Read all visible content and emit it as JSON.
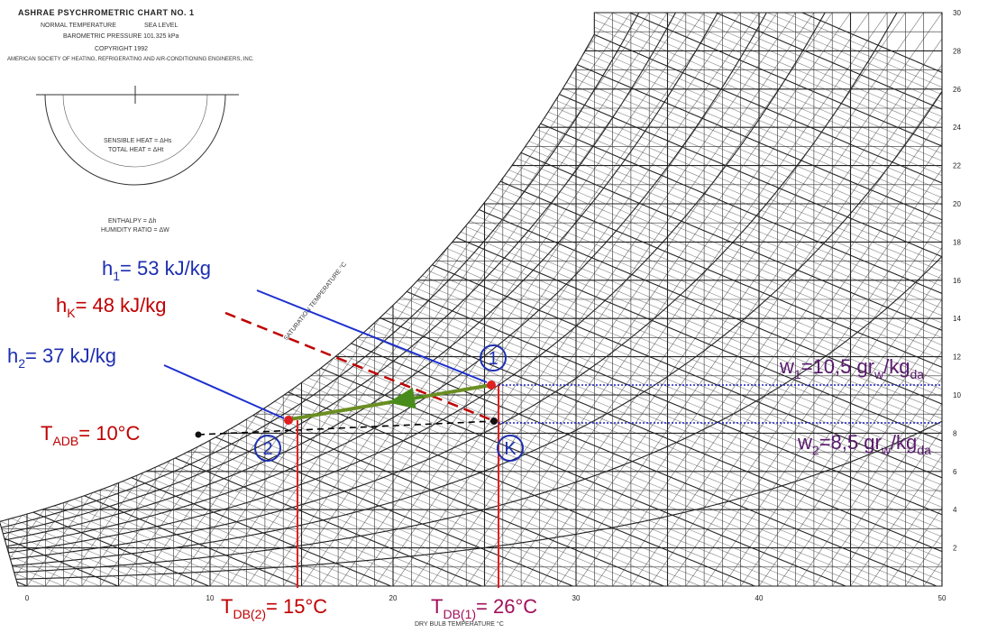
{
  "header": {
    "title": "ASHRAE PSYCHROMETRIC CHART NO. 1",
    "condition_left": "NORMAL TEMPERATURE",
    "condition_right": "SEA LEVEL",
    "pressure": "BAROMETRIC PRESSURE 101.325 kPa",
    "copyright": "COPYRIGHT 1992",
    "society": "AMERICAN SOCIETY OF HEATING, REFRIGERATING AND AIR-CONDITIONING ENGINEERS, INC."
  },
  "protractor": {
    "sensible": "SENSIBLE HEAT = ΔHs",
    "total": "TOTAL HEAT = ΔHt",
    "enthalpy": "ENTHALPY = Δh",
    "humidity": "HUMIDITY RATIO = ΔW"
  },
  "axes": {
    "x_label": "DRY BULB TEMPERATURE °C",
    "x_ticks": [
      "0",
      "10",
      "20",
      "30",
      "40",
      "50"
    ],
    "y_ticks": [
      "2",
      "4",
      "6",
      "8",
      "10",
      "12",
      "14",
      "16",
      "18",
      "20",
      "22",
      "24",
      "26",
      "28",
      "30"
    ],
    "saturation_label": "SATURATION TEMPERATURE °C"
  },
  "annotations": {
    "h1": [
      "h",
      "1",
      "= 53 kJ/kg"
    ],
    "hK": [
      "h",
      "K",
      "= 48 kJ/kg"
    ],
    "h2": [
      "h",
      "2",
      "= 37 kJ/kg"
    ],
    "t_adb": [
      "T",
      "ADB",
      "= 10°C"
    ],
    "t_db2": [
      "T",
      "DB(2)",
      "= 15°C"
    ],
    "t_db1": [
      "T",
      "DB(1)",
      "= 26°C"
    ],
    "w1": [
      "w",
      "1",
      "=10,5 gr",
      "w",
      "/kg",
      "da"
    ],
    "w2": [
      "w",
      "2",
      "=8,5 gr",
      "w",
      "/kg",
      "da"
    ]
  },
  "points": {
    "p1": "1",
    "p2": "2",
    "pK": "K"
  }
}
